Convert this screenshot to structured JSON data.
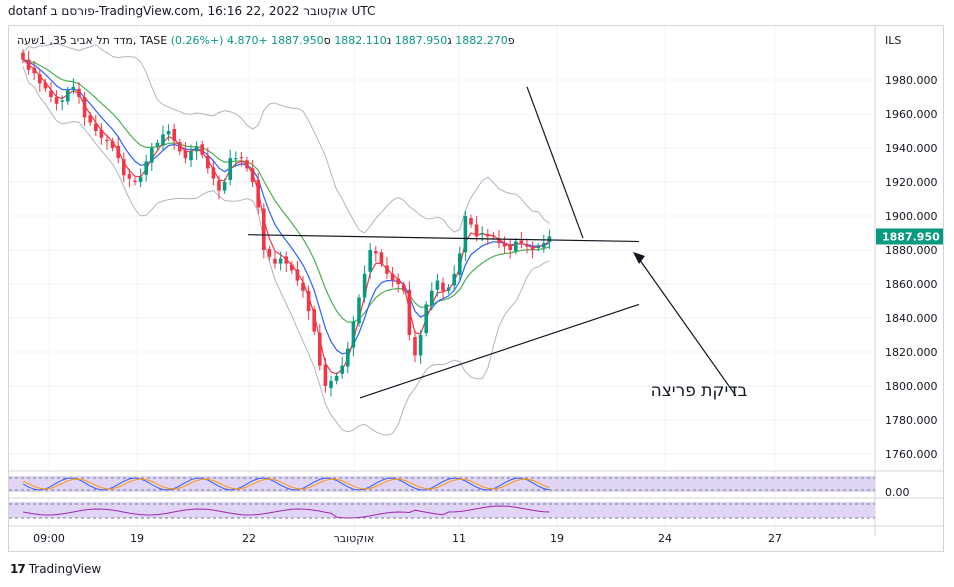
{
  "header": {
    "text": "dotanf פורסם ב-TradingView.com, 16:16 22, אוקטובר 2022 UTC"
  },
  "legend": {
    "symbol": "מדד תל אביב 35, 1שעה, TASE",
    "open_label": "פ",
    "open": "1882.270",
    "high_label": "ג",
    "high": "1887.950",
    "low_label": "נ",
    "low": "1882.110",
    "close_label": "ס",
    "close": "1887.950",
    "change": "+4.870 (+0.26%)"
  },
  "price_axis": {
    "currency": "ILS",
    "ticks": [
      "1980.000",
      "1960.000",
      "1940.000",
      "1920.000",
      "1900.000",
      "1880.000",
      "1860.000",
      "1840.000",
      "1820.000",
      "1800.000",
      "1780.000",
      "1760.000"
    ],
    "last_price": "1887.950",
    "indicator_zero": "0.00"
  },
  "time_axis": {
    "labels": [
      "09:00",
      "19",
      "22",
      "אוקטובר",
      "11",
      "19",
      "24",
      "27"
    ]
  },
  "annotation": {
    "text": "בדיקת פריצה"
  },
  "footer": {
    "logo": "17",
    "brand": "TradingView"
  },
  "colors": {
    "up": "#089981",
    "down": "#f23645",
    "ema_fast": "#f23645",
    "ema_mid": "#2962ff",
    "ema_slow": "#4caf50",
    "bands": "#b2b5be",
    "osc_fill": "#e1d5f5",
    "osc_line1": "#2962ff",
    "osc_line2": "#ff9800",
    "rsi_line": "#9c27b0",
    "grid": "#f0f3fa"
  },
  "chart_data": {
    "type": "candlestick",
    "title": "",
    "ylim": [
      1750,
      2000
    ],
    "yticks": [
      1980,
      1960,
      1940,
      1920,
      1900,
      1880,
      1860,
      1840,
      1820,
      1800,
      1780,
      1760
    ],
    "last": 1887.95,
    "close": [
      1992,
      1986,
      1984,
      1978,
      1975,
      1970,
      1966,
      1968,
      1974,
      1976,
      1970,
      1958,
      1955,
      1950,
      1946,
      1944,
      1940,
      1934,
      1924,
      1922,
      1920,
      1923,
      1932,
      1940,
      1943,
      1948,
      1950,
      1944,
      1938,
      1934,
      1938,
      1941,
      1936,
      1928,
      1922,
      1915,
      1920,
      1934,
      1934,
      1934,
      1928,
      1920,
      1905,
      1880,
      1876,
      1872,
      1875,
      1872,
      1868,
      1862,
      1856,
      1844,
      1832,
      1812,
      1800,
      1803,
      1806,
      1812,
      1822,
      1838,
      1852,
      1866,
      1880,
      1878,
      1872,
      1866,
      1862,
      1860,
      1856,
      1830,
      1818,
      1830,
      1848,
      1856,
      1862,
      1856,
      1858,
      1866,
      1878,
      1900,
      1895,
      1888,
      1890,
      1888,
      1888,
      1884,
      1882,
      1880,
      1885,
      1884,
      1882,
      1880,
      1882,
      1884,
      1888
    ],
    "trendlines": [
      {
        "name": "resistance",
        "x1": 0,
        "y1": 1889,
        "x2": 110,
        "y2": 1885
      },
      {
        "name": "support",
        "x1": 50,
        "y1": 1793,
        "x2": 110,
        "y2": 1848
      },
      {
        "name": "arrow-line",
        "x1": 90,
        "y1": 1976,
        "x2": 100,
        "y2": 1887
      }
    ]
  }
}
